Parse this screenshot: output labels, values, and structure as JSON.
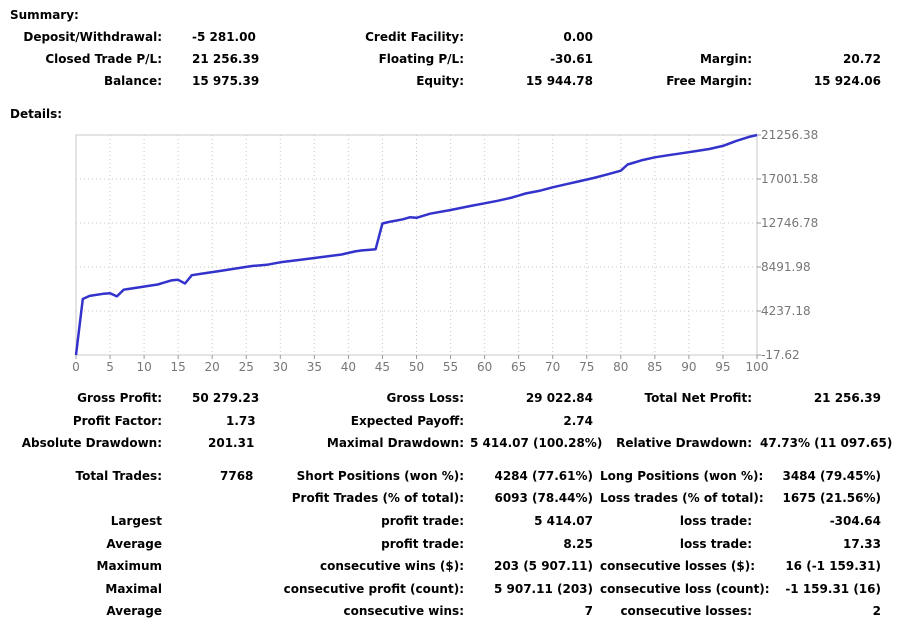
{
  "summary": {
    "title": "Summary:",
    "deposit_label": "Deposit/Withdrawal:",
    "deposit": "-5 281.00",
    "credit_label": "Credit Facility:",
    "credit": "0.00",
    "closed_pl_label": "Closed Trade P/L:",
    "closed_pl": "21 256.39",
    "floating_pl_label": "Floating P/L:",
    "floating_pl": "-30.61",
    "margin_label": "Margin:",
    "margin": "20.72",
    "balance_label": "Balance:",
    "balance": "15 975.39",
    "equity_label": "Equity:",
    "equity": "15 944.78",
    "free_margin_label": "Free Margin:",
    "free_margin": "15 924.06"
  },
  "details": {
    "title": "Details:",
    "gross_profit_label": "Gross Profit:",
    "gross_profit": "50 279.23",
    "gross_loss_label": "Gross Loss:",
    "gross_loss": "29 022.84",
    "total_net_profit_label": "Total Net Profit:",
    "total_net_profit": "21 256.39",
    "profit_factor_label": "Profit Factor:",
    "profit_factor": "1.73",
    "expected_payoff_label": "Expected Payoff:",
    "expected_payoff": "2.74",
    "absolute_drawdown_label": "Absolute Drawdown:",
    "absolute_drawdown": "201.31",
    "maximal_drawdown_label": "Maximal Drawdown:",
    "maximal_drawdown": "5 414.07 (100.28%)",
    "relative_drawdown_label": "Relative Drawdown:",
    "relative_drawdown": "47.73% (11 097.65)",
    "total_trades_label": "Total Trades:",
    "total_trades": "7768",
    "short_positions_label": "Short Positions (won %):",
    "short_positions": "4284 (77.61%)",
    "long_positions_label": "Long Positions (won %):",
    "long_positions": "3484 (79.45%)",
    "profit_trades_label": "Profit Trades (% of total):",
    "profit_trades": "6093 (78.44%)",
    "loss_trades_label": "Loss trades (% of total):",
    "loss_trades": "1675 (21.56%)",
    "largest_label": "Largest",
    "largest_profit_label": "profit trade:",
    "largest_profit": "5 414.07",
    "largest_loss_label": "loss trade:",
    "largest_loss": "-304.64",
    "average_label": "Average",
    "average_profit_label": "profit trade:",
    "average_profit": "8.25",
    "average_loss_label": "loss trade:",
    "average_loss": "17.33",
    "maximum_label": "Maximum",
    "max_cons_wins_label": "consecutive wins ($):",
    "max_cons_wins": "203 (5 907.11)",
    "max_cons_losses_label": "consecutive losses ($):",
    "max_cons_losses": "16 (-1 159.31)",
    "maximal_label": "Maximal",
    "maximal_cons_profit_label": "consecutive profit (count):",
    "maximal_cons_profit": "5 907.11 (203)",
    "maximal_cons_loss_label": "consecutive loss (count):",
    "maximal_cons_loss": "-1 159.31 (16)",
    "average2_label": "Average",
    "avg_cons_wins_label": "consecutive wins:",
    "avg_cons_wins": "7",
    "avg_cons_losses_label": "consecutive losses:",
    "avg_cons_losses": "2"
  },
  "chart_data": {
    "type": "line",
    "color": "#3333cc",
    "xlim": [
      0,
      100
    ],
    "ylim": [
      -17.62,
      21256.38
    ],
    "x_ticks": [
      "0",
      "5",
      "10",
      "15",
      "20",
      "25",
      "30",
      "35",
      "40",
      "45",
      "50",
      "55",
      "60",
      "65",
      "70",
      "75",
      "80",
      "85",
      "90",
      "95",
      "100"
    ],
    "y_ticks": [
      "21256.38",
      "17001.58",
      "12746.78",
      "8491.98",
      "4237.18",
      "-17.62"
    ],
    "grid": true,
    "series": [
      {
        "x": [
          0,
          1,
          2,
          4,
          5,
          6,
          7,
          9,
          11,
          12,
          13,
          14,
          15,
          16,
          17,
          19,
          21,
          23,
          25,
          26,
          27,
          28,
          30,
          33,
          36,
          39,
          41,
          42,
          43,
          44,
          45,
          46,
          48,
          49,
          50,
          52,
          55,
          58,
          60,
          62,
          64,
          65,
          66,
          68,
          70,
          72,
          74,
          76,
          78,
          80,
          81,
          82,
          83,
          85,
          87,
          89,
          91,
          93,
          95,
          97,
          99,
          100
        ],
        "y": [
          -17.62,
          5400,
          5700,
          5900,
          5950,
          5650,
          6300,
          6500,
          6700,
          6800,
          7000,
          7200,
          7250,
          6900,
          7700,
          7900,
          8100,
          8300,
          8500,
          8600,
          8650,
          8700,
          8950,
          9200,
          9450,
          9700,
          10000,
          10100,
          10150,
          10200,
          12700,
          12850,
          13100,
          13300,
          13250,
          13650,
          14000,
          14400,
          14650,
          14900,
          15200,
          15400,
          15600,
          15850,
          16200,
          16500,
          16800,
          17100,
          17450,
          17800,
          18400,
          18600,
          18800,
          19100,
          19300,
          19500,
          19700,
          19900,
          20200,
          20700,
          21100,
          21256.38
        ]
      }
    ]
  }
}
